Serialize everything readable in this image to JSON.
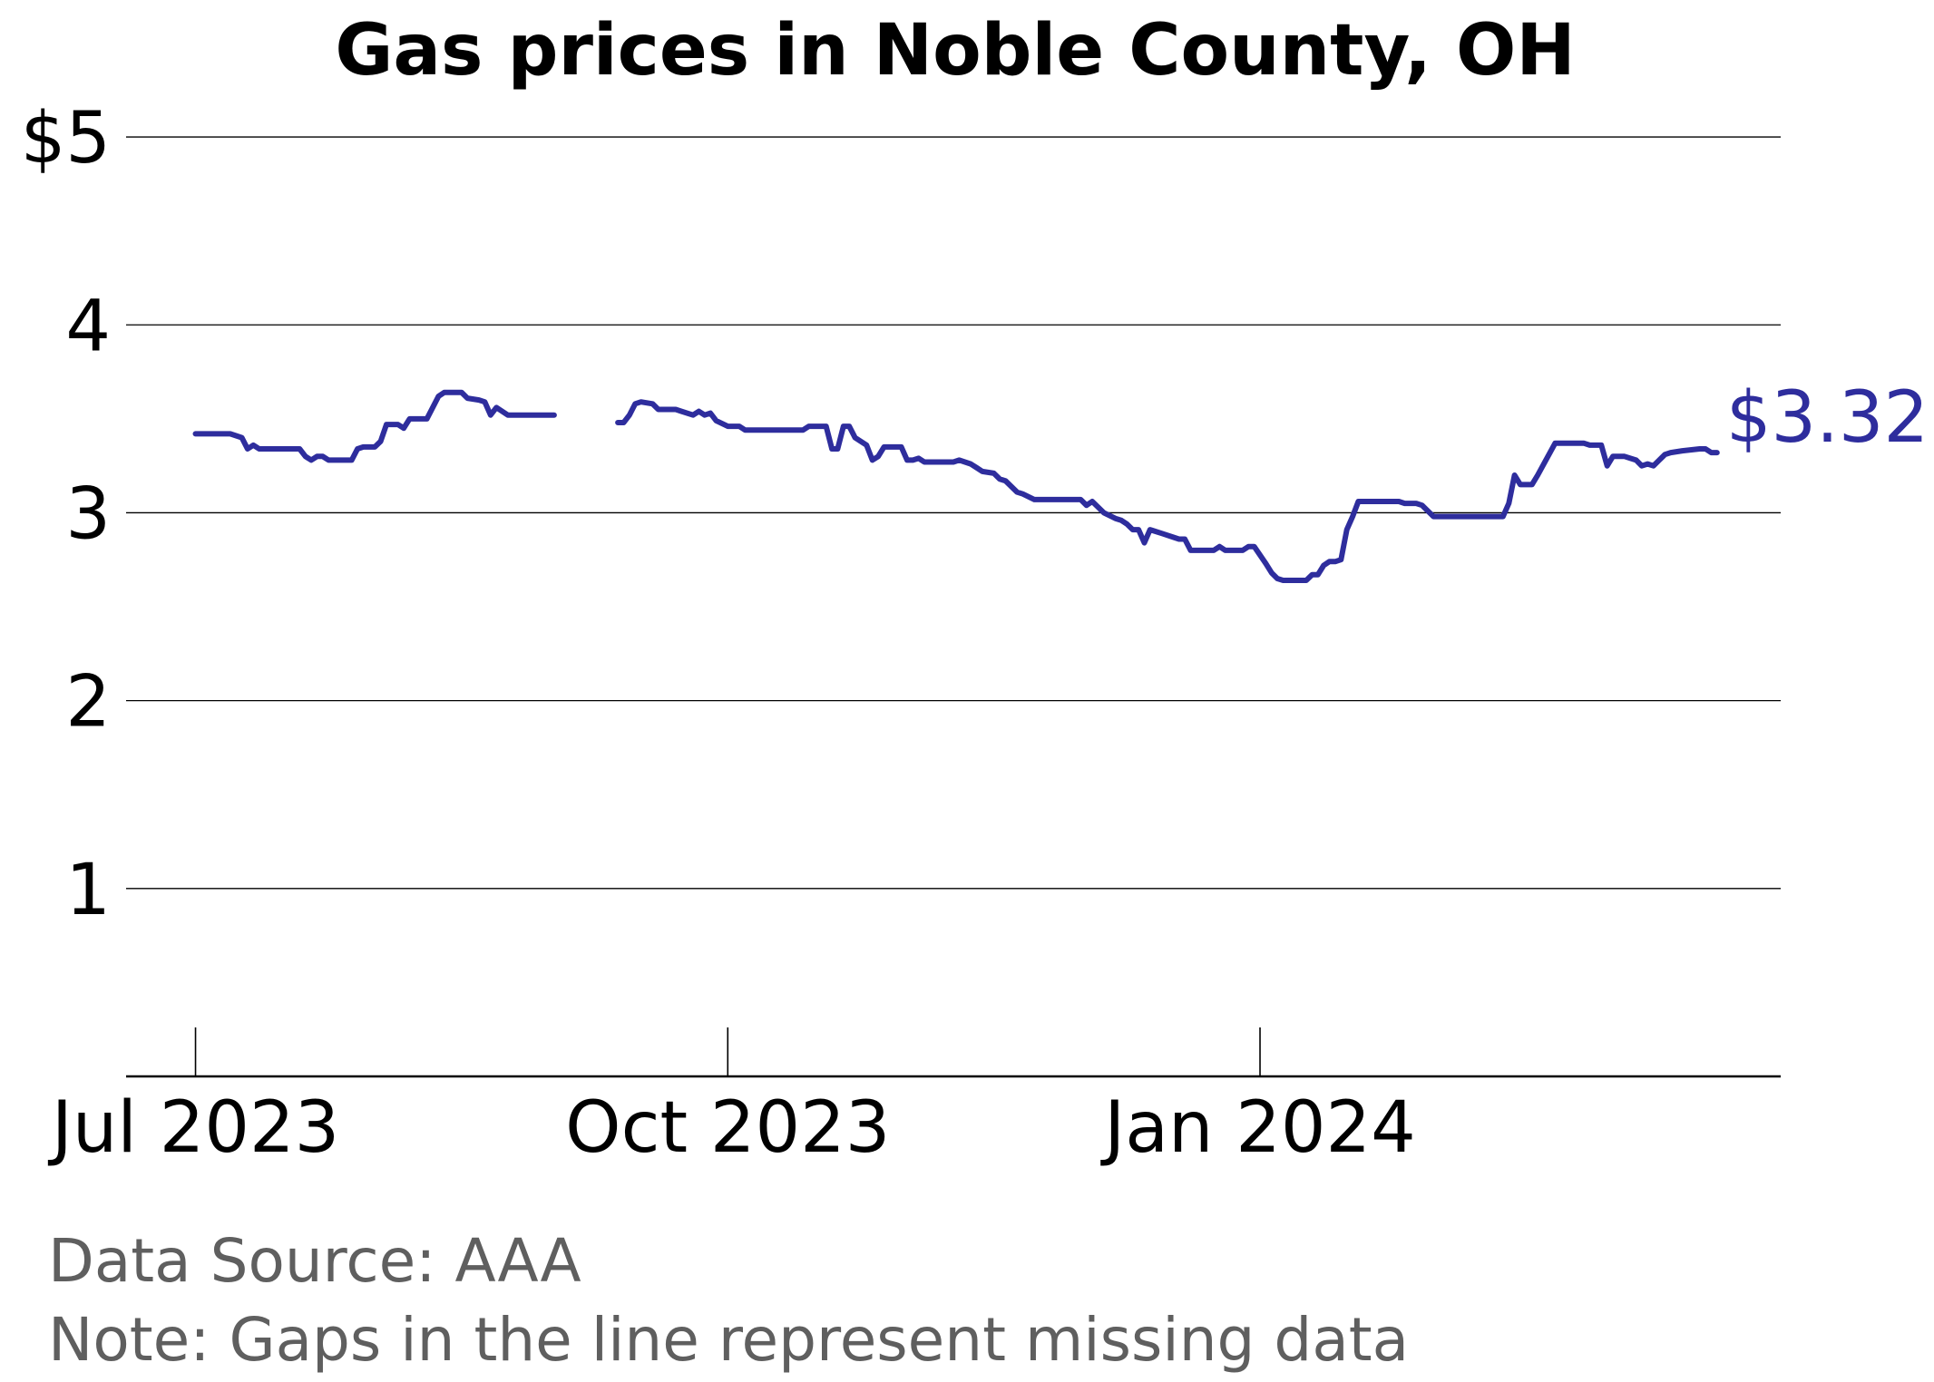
{
  "chart_data": {
    "type": "line",
    "title": "Gas prices in Noble County, OH",
    "xlabel": "",
    "ylabel": "",
    "y_ticks": [
      "$5",
      "4",
      "3",
      "2",
      "1"
    ],
    "y_tick_values": [
      5,
      4,
      3,
      2,
      1
    ],
    "ylim": [
      0,
      5.15
    ],
    "x_ticks": [
      {
        "date": "2023-07-01",
        "label": "Jul 2023"
      },
      {
        "date": "2023-10-01",
        "label": "Oct 2023"
      },
      {
        "date": "2024-01-01",
        "label": "Jan 2024"
      }
    ],
    "xlim": [
      "2023-06-19",
      "2024-03-31"
    ],
    "grid": true,
    "line_color": "#2e2d9d",
    "last_value_label": "$3.32",
    "series": [
      {
        "segments": [
          [
            [
              "2023-07-01",
              3.42
            ],
            [
              "2023-07-07",
              3.42
            ],
            [
              "2023-07-08",
              3.41
            ],
            [
              "2023-07-09",
              3.4
            ],
            [
              "2023-07-10",
              3.34
            ],
            [
              "2023-07-11",
              3.36
            ],
            [
              "2023-07-12",
              3.34
            ],
            [
              "2023-07-18",
              3.34
            ],
            [
              "2023-07-19",
              3.34
            ],
            [
              "2023-07-20",
              3.3
            ],
            [
              "2023-07-21",
              3.28
            ],
            [
              "2023-07-22",
              3.3
            ],
            [
              "2023-07-23",
              3.3
            ],
            [
              "2023-07-24",
              3.28
            ],
            [
              "2023-07-28",
              3.28
            ],
            [
              "2023-07-29",
              3.34
            ],
            [
              "2023-07-30",
              3.35
            ],
            [
              "2023-08-01",
              3.35
            ],
            [
              "2023-08-02",
              3.38
            ],
            [
              "2023-08-03",
              3.47
            ],
            [
              "2023-08-05",
              3.47
            ],
            [
              "2023-08-06",
              3.45
            ],
            [
              "2023-08-07",
              3.5
            ],
            [
              "2023-08-10",
              3.5
            ],
            [
              "2023-08-12",
              3.62
            ],
            [
              "2023-08-13",
              3.64
            ],
            [
              "2023-08-16",
              3.64
            ],
            [
              "2023-08-17",
              3.61
            ],
            [
              "2023-08-19",
              3.6
            ],
            [
              "2023-08-20",
              3.59
            ],
            [
              "2023-08-21",
              3.52
            ],
            [
              "2023-08-22",
              3.56
            ],
            [
              "2023-08-24",
              3.52
            ],
            [
              "2023-09-01",
              3.52
            ]
          ],
          [
            [
              "2023-09-12",
              3.48
            ],
            [
              "2023-09-13",
              3.48
            ],
            [
              "2023-09-14",
              3.52
            ],
            [
              "2023-09-15",
              3.58
            ],
            [
              "2023-09-16",
              3.59
            ],
            [
              "2023-09-18",
              3.58
            ],
            [
              "2023-09-19",
              3.55
            ],
            [
              "2023-09-22",
              3.55
            ],
            [
              "2023-09-23",
              3.54
            ],
            [
              "2023-09-25",
              3.52
            ],
            [
              "2023-09-26",
              3.54
            ],
            [
              "2023-09-27",
              3.52
            ],
            [
              "2023-09-28",
              3.53
            ],
            [
              "2023-09-29",
              3.49
            ],
            [
              "2023-10-01",
              3.46
            ],
            [
              "2023-10-03",
              3.46
            ],
            [
              "2023-10-04",
              3.44
            ],
            [
              "2023-10-14",
              3.44
            ],
            [
              "2023-10-15",
              3.46
            ],
            [
              "2023-10-18",
              3.46
            ],
            [
              "2023-10-19",
              3.34
            ],
            [
              "2023-10-20",
              3.34
            ],
            [
              "2023-10-21",
              3.46
            ],
            [
              "2023-10-22",
              3.46
            ],
            [
              "2023-10-23",
              3.4
            ],
            [
              "2023-10-25",
              3.36
            ],
            [
              "2023-10-26",
              3.28
            ],
            [
              "2023-10-27",
              3.3
            ],
            [
              "2023-10-28",
              3.35
            ],
            [
              "2023-10-31",
              3.35
            ],
            [
              "2023-11-01",
              3.28
            ],
            [
              "2023-11-02",
              3.28
            ],
            [
              "2023-11-03",
              3.29
            ],
            [
              "2023-11-04",
              3.27
            ],
            [
              "2023-11-09",
              3.27
            ],
            [
              "2023-11-10",
              3.28
            ],
            [
              "2023-11-12",
              3.26
            ],
            [
              "2023-11-13",
              3.24
            ],
            [
              "2023-11-14",
              3.22
            ],
            [
              "2023-11-16",
              3.21
            ],
            [
              "2023-11-17",
              3.18
            ],
            [
              "2023-11-18",
              3.17
            ],
            [
              "2023-11-20",
              3.11
            ],
            [
              "2023-11-21",
              3.1
            ],
            [
              "2023-11-23",
              3.07
            ],
            [
              "2023-12-01",
              3.07
            ],
            [
              "2023-12-02",
              3.04
            ],
            [
              "2023-12-03",
              3.06
            ],
            [
              "2023-12-05",
              3.0
            ],
            [
              "2023-12-07",
              2.97
            ],
            [
              "2023-12-08",
              2.96
            ],
            [
              "2023-12-09",
              2.94
            ],
            [
              "2023-12-10",
              2.91
            ],
            [
              "2023-12-11",
              2.91
            ],
            [
              "2023-12-12",
              2.84
            ],
            [
              "2023-12-13",
              2.91
            ],
            [
              "2023-12-15",
              2.89
            ],
            [
              "2023-12-17",
              2.87
            ],
            [
              "2023-12-18",
              2.86
            ],
            [
              "2023-12-19",
              2.86
            ],
            [
              "2023-12-20",
              2.8
            ],
            [
              "2023-12-24",
              2.8
            ],
            [
              "2023-12-25",
              2.82
            ],
            [
              "2023-12-26",
              2.8
            ],
            [
              "2023-12-29",
              2.8
            ],
            [
              "2023-12-30",
              2.82
            ],
            [
              "2023-12-31",
              2.82
            ],
            [
              "2024-01-02",
              2.73
            ],
            [
              "2024-01-03",
              2.68
            ],
            [
              "2024-01-04",
              2.65
            ],
            [
              "2024-01-05",
              2.64
            ],
            [
              "2024-01-09",
              2.64
            ],
            [
              "2024-01-10",
              2.67
            ],
            [
              "2024-01-11",
              2.67
            ],
            [
              "2024-01-12",
              2.72
            ],
            [
              "2024-01-13",
              2.74
            ],
            [
              "2024-01-14",
              2.74
            ],
            [
              "2024-01-15",
              2.75
            ],
            [
              "2024-01-16",
              2.91
            ],
            [
              "2024-01-17",
              2.98
            ],
            [
              "2024-01-18",
              3.06
            ],
            [
              "2024-01-25",
              3.06
            ],
            [
              "2024-01-26",
              3.05
            ],
            [
              "2024-01-28",
              3.05
            ],
            [
              "2024-01-29",
              3.04
            ],
            [
              "2024-01-31",
              2.98
            ],
            [
              "2024-02-01",
              2.98
            ],
            [
              "2024-02-12",
              2.98
            ],
            [
              "2024-02-13",
              3.05
            ],
            [
              "2024-02-14",
              3.2
            ],
            [
              "2024-02-15",
              3.15
            ],
            [
              "2024-02-17",
              3.15
            ],
            [
              "2024-02-18",
              3.2
            ],
            [
              "2024-02-21",
              3.37
            ],
            [
              "2024-02-26",
              3.37
            ],
            [
              "2024-02-27",
              3.36
            ],
            [
              "2024-02-29",
              3.36
            ],
            [
              "2024-03-01",
              3.25
            ],
            [
              "2024-03-02",
              3.3
            ],
            [
              "2024-03-04",
              3.3
            ],
            [
              "2024-03-06",
              3.28
            ],
            [
              "2024-03-07",
              3.25
            ],
            [
              "2024-03-08",
              3.26
            ],
            [
              "2024-03-09",
              3.25
            ],
            [
              "2024-03-10",
              3.28
            ],
            [
              "2024-03-11",
              3.31
            ],
            [
              "2024-03-12",
              3.32
            ],
            [
              "2024-03-14",
              3.33
            ],
            [
              "2024-03-17",
              3.34
            ],
            [
              "2024-03-18",
              3.34
            ],
            [
              "2024-03-19",
              3.32
            ],
            [
              "2024-03-20",
              3.32
            ]
          ]
        ]
      }
    ]
  },
  "footnotes": {
    "source": "Data Source: AAA",
    "note": "Note: Gaps in the line represent missing data"
  }
}
